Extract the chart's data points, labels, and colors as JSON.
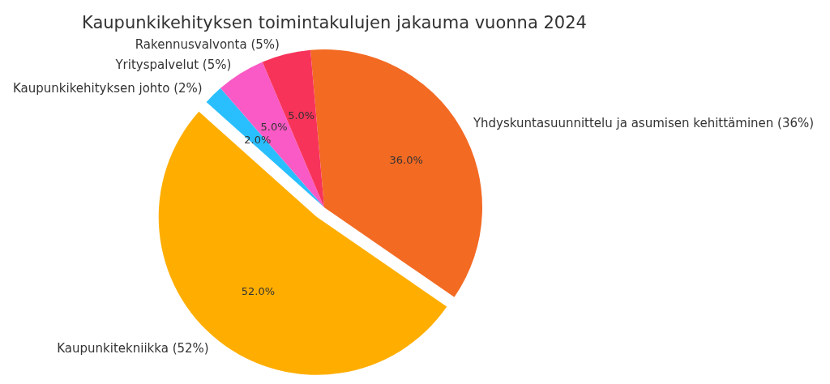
{
  "chart_data": {
    "type": "pie",
    "title": "Kaupunkikehityksen toimintakulujen jakauma vuonna 2024",
    "categories": [
      "Yhdyskuntasuunnittelu ja asumisen kehittäminen (36%)",
      "Kaupunkitekniikka (52%)",
      "Kaupunkikehityksen johto (2%)",
      "Yrityspalvelut (5%)",
      "Rakennusvalvonta (5%)"
    ],
    "values": [
      36,
      52,
      2,
      5,
      5
    ],
    "value_labels": [
      "36.0%",
      "52.0%",
      "2.0%",
      "5.0%",
      "5.0%"
    ],
    "colors": [
      "#f36a23",
      "#ffae00",
      "#29bfff",
      "#f95ac5",
      "#f7335a"
    ]
  }
}
